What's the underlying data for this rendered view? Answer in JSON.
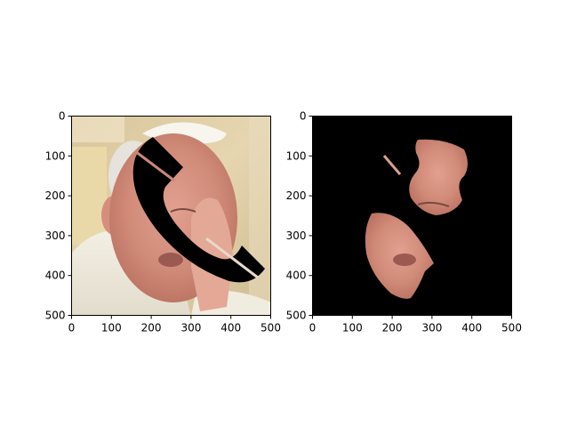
{
  "figure": {
    "background": "#ffffff",
    "axes_color": "#000000"
  },
  "chart_data": [
    {
      "type": "image",
      "panel": "left",
      "content": "photograph",
      "image_size": [
        500,
        500
      ],
      "xlim": [
        0,
        500
      ],
      "ylim": [
        500,
        0
      ],
      "xticks": [
        0,
        100,
        200,
        300,
        400,
        500
      ],
      "yticks": [
        0,
        100,
        200,
        300,
        400,
        500
      ],
      "x_tick_labels": [
        "0",
        "100",
        "200",
        "300",
        "400",
        "500"
      ],
      "y_tick_labels": [
        "0",
        "100",
        "200",
        "300",
        "400",
        "500"
      ],
      "overlay": "black telephone-handset-shaped mask",
      "title": "",
      "xlabel": "",
      "ylabel": ""
    },
    {
      "type": "image",
      "panel": "right",
      "content": "masked photograph (visible region on black background)",
      "image_size": [
        500,
        500
      ],
      "xlim": [
        0,
        500
      ],
      "ylim": [
        500,
        0
      ],
      "xticks": [
        0,
        100,
        200,
        300,
        400,
        500
      ],
      "yticks": [
        0,
        100,
        200,
        300,
        400,
        500
      ],
      "x_tick_labels": [
        "0",
        "100",
        "200",
        "300",
        "400",
        "500"
      ],
      "y_tick_labels": [
        "0",
        "100",
        "200",
        "300",
        "400",
        "500"
      ],
      "background_color": "#000000",
      "title": "",
      "xlabel": "",
      "ylabel": ""
    }
  ]
}
